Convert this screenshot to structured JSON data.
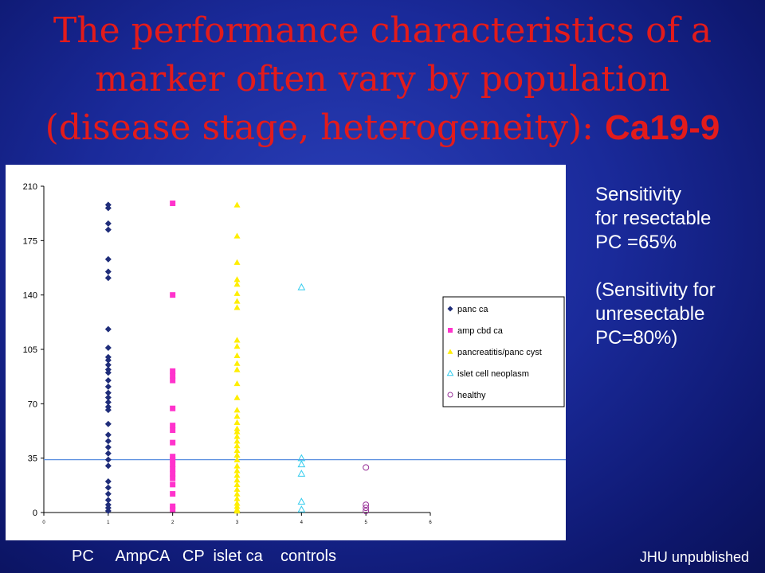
{
  "slide": {
    "title_line1": "The performance characteristics of a",
    "title_line2": "marker often vary by population",
    "title_line3_a": "(disease stage, heterogeneity): ",
    "title_line3_b": "Ca19-9",
    "sensitivity_lines": [
      "Sensitivity",
      "for resectable",
      "PC =65%"
    ],
    "unresectable_lines": [
      "(Sensitivity for",
      "unresectable",
      "PC=80%)"
    ],
    "group_labels": "PC     AmpCA   CP  islet ca    controls",
    "credit": "JHU unpublished"
  },
  "colors": {
    "background": "#1a2a9a",
    "title": "#e31b1b",
    "cutoff_line": "#5b8fe0"
  },
  "chart_data": {
    "type": "scatter",
    "title": "",
    "xlabel": "",
    "ylabel": "",
    "xlim": [
      0,
      6
    ],
    "ylim": [
      0,
      210
    ],
    "x_ticks": [
      "0",
      "1",
      "2",
      "3",
      "4",
      "5",
      "6"
    ],
    "y_ticks": [
      "0",
      "35",
      "70",
      "105",
      "140",
      "175",
      "210"
    ],
    "cutoff": 34,
    "legend_position": "right",
    "series": [
      {
        "name": "panc ca",
        "marker": "diamond",
        "color": "#1f2d7a",
        "x": 1,
        "values": [
          198,
          196,
          186,
          182,
          163,
          155,
          151,
          118,
          106,
          100,
          98,
          95,
          92,
          90,
          85,
          81,
          77,
          74,
          71,
          68,
          66,
          57,
          50,
          46,
          42,
          38,
          34,
          30,
          20,
          16,
          12,
          8,
          5,
          3,
          1
        ]
      },
      {
        "name": "amp cbd ca",
        "marker": "square",
        "color": "#ff33cc",
        "x": 2,
        "values": [
          199,
          140,
          91,
          88,
          85,
          67,
          56,
          53,
          45,
          36,
          34,
          31,
          28,
          25,
          22,
          18,
          12,
          4,
          2
        ]
      },
      {
        "name": "pancreatitis/panc cyst",
        "marker": "triangle",
        "color": "#ffee00",
        "x": 3,
        "values": [
          198,
          178,
          161,
          150,
          147,
          141,
          136,
          132,
          111,
          107,
          101,
          96,
          92,
          83,
          74,
          66,
          62,
          58,
          54,
          52,
          49,
          46,
          43,
          40,
          37,
          34,
          30,
          27,
          24,
          21,
          18,
          15,
          12,
          9,
          6,
          4,
          2,
          1
        ]
      },
      {
        "name": "islet cell neoplasm",
        "marker": "open-triangle",
        "color": "#33ccee",
        "x": 4,
        "values": [
          145,
          35,
          31,
          25,
          7,
          2
        ]
      },
      {
        "name": "healthy",
        "marker": "open-circle",
        "color": "#993399",
        "x": 5,
        "values": [
          29,
          5,
          3,
          1
        ]
      }
    ]
  }
}
